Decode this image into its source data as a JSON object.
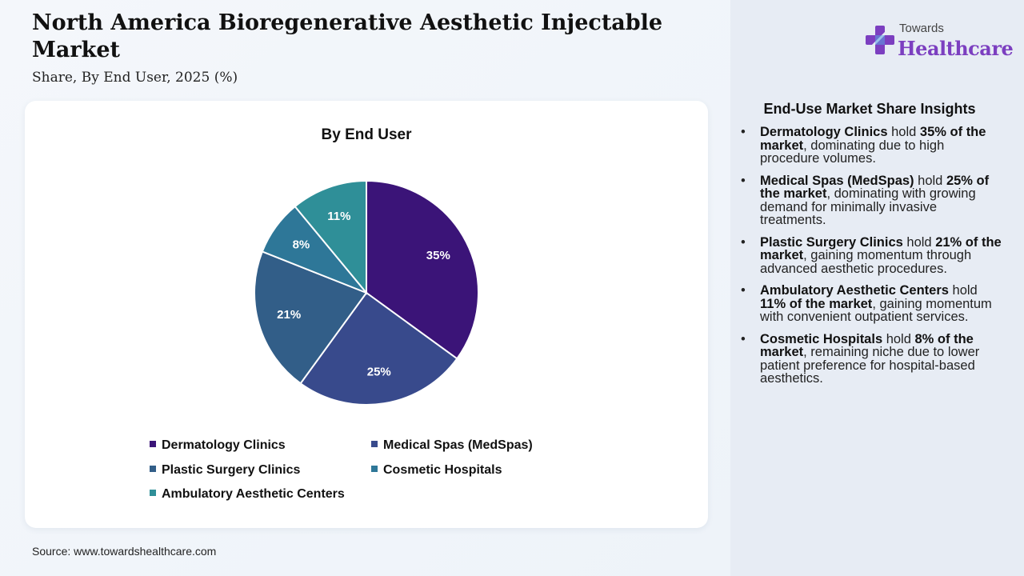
{
  "header": {
    "title": "North America Bioregenerative Aesthetic Injectable Market",
    "subtitle": "Share, By End User, 2025 (%)"
  },
  "logo": {
    "small_text": "Towards",
    "big_text": "Healthcare",
    "color": "#7c3fc0",
    "icon": "cross-icon"
  },
  "chart_data": {
    "type": "pie",
    "title": "By End User",
    "categories": [
      "Dermatology Clinics",
      "Medical Spas (MedSpas)",
      "Plastic Surgery Clinics",
      "Cosmetic Hospitals",
      "Ambulatory Aesthetic Centers"
    ],
    "values": [
      35,
      25,
      21,
      8,
      11
    ],
    "labels": [
      "35%",
      "25%",
      "21%",
      "8%",
      "11%"
    ],
    "colors": [
      "#3b1478",
      "#384a8c",
      "#325e88",
      "#2e7798",
      "#2f8f98"
    ],
    "legend_position": "bottom"
  },
  "legend": [
    {
      "label": "Dermatology Clinics",
      "color": "#3b1478"
    },
    {
      "label": "Medical Spas (MedSpas)",
      "color": "#384a8c"
    },
    {
      "label": "Plastic Surgery Clinics",
      "color": "#325e88"
    },
    {
      "label": "Cosmetic Hospitals",
      "color": "#2e7798"
    },
    {
      "label": "Ambulatory Aesthetic Centers",
      "color": "#2f8f98"
    }
  ],
  "insights": {
    "heading": "End-Use Market Share Insights",
    "items": [
      {
        "name": "Dermatology Clinics",
        "mid": " hold ",
        "share": "35% of the market",
        "rest": ", dominating due to high procedure volumes."
      },
      {
        "name": "Medical Spas (MedSpas)",
        "mid": " hold ",
        "share": "25% of the market",
        "rest": ", dominating with growing demand for minimally invasive treatments."
      },
      {
        "name": "Plastic Surgery Clinics",
        "mid": " hold ",
        "share": "21% of the market",
        "rest": ", gaining momentum through advanced aesthetic procedures."
      },
      {
        "name": "Ambulatory Aesthetic Centers",
        "mid": " hold ",
        "share": "11% of the market",
        "rest": ", gaining momentum with convenient outpatient services."
      },
      {
        "name": "Cosmetic Hospitals",
        "mid": " hold ",
        "share": "8% of the market",
        "rest": ", remaining niche due to lower patient preference for hospital-based aesthetics."
      }
    ]
  },
  "source": "Source: www.towardshealthcare.com"
}
